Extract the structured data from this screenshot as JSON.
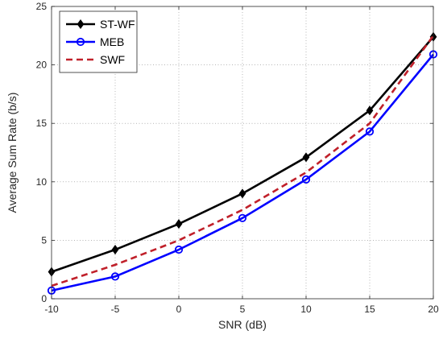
{
  "chart_data": {
    "type": "line",
    "title": "",
    "xlabel": "SNR (dB)",
    "ylabel": "Average Sum Rate (b/s)",
    "xlim": [
      -10,
      20
    ],
    "ylim": [
      0,
      25
    ],
    "xticks": [
      -10,
      -5,
      0,
      5,
      10,
      15,
      20
    ],
    "yticks": [
      0,
      5,
      10,
      15,
      20,
      25
    ],
    "grid": true,
    "grid_style": "dotted",
    "legend_position": "top-left",
    "x": [
      -10,
      -5,
      0,
      5,
      10,
      15,
      20
    ],
    "series": [
      {
        "name": "ST-WF",
        "values": [
          2.3,
          4.2,
          6.4,
          9.0,
          12.1,
          16.1,
          22.4
        ],
        "color": "#000000",
        "line_style": "solid",
        "marker": "diamond"
      },
      {
        "name": "MEB",
        "values": [
          0.7,
          1.9,
          4.2,
          6.9,
          10.2,
          14.3,
          20.9
        ],
        "color": "#0000ff",
        "line_style": "solid",
        "marker": "circle"
      },
      {
        "name": "SWF",
        "values": [
          1.1,
          2.9,
          5.0,
          7.6,
          10.8,
          15.0,
          22.5
        ],
        "color": "#c0202a",
        "line_style": "dashed",
        "marker": "none"
      }
    ]
  }
}
